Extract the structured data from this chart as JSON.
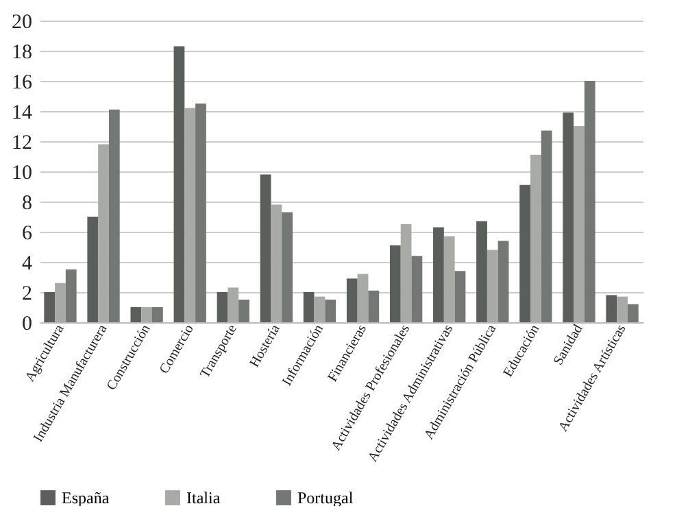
{
  "chart_data": {
    "type": "bar",
    "categories": [
      "Agricultura",
      "Industria Manufacturera",
      "Construcción",
      "Comercio",
      "Transporte",
      "Hostería",
      "Información",
      "Financieras",
      "Actividades Profesionales",
      "Actividades Administrativas",
      "Administración Pública",
      "Educación",
      "Sanidad",
      "Actividades Artísticas"
    ],
    "series": [
      {
        "name": "España",
        "color": "#5a5f5b",
        "values": [
          2.0,
          7.0,
          1.0,
          18.3,
          2.0,
          9.8,
          2.0,
          2.9,
          5.1,
          6.3,
          6.7,
          9.1,
          13.9,
          1.8
        ]
      },
      {
        "name": "Italia",
        "color": "#a8aaa6",
        "values": [
          2.6,
          11.8,
          1.0,
          14.2,
          2.3,
          7.8,
          1.7,
          3.2,
          6.5,
          5.7,
          4.8,
          11.1,
          13.0,
          1.7
        ]
      },
      {
        "name": "Portugal",
        "color": "#737874",
        "values": [
          3.5,
          14.1,
          1.0,
          14.5,
          1.5,
          7.3,
          1.5,
          2.1,
          4.4,
          3.4,
          5.4,
          12.7,
          16.0,
          1.2
        ]
      }
    ],
    "ylim": [
      0,
      20
    ],
    "yticks": [
      0,
      2,
      4,
      6,
      8,
      10,
      12,
      14,
      16,
      18,
      20
    ],
    "grid": "y",
    "legend": "bottom"
  }
}
